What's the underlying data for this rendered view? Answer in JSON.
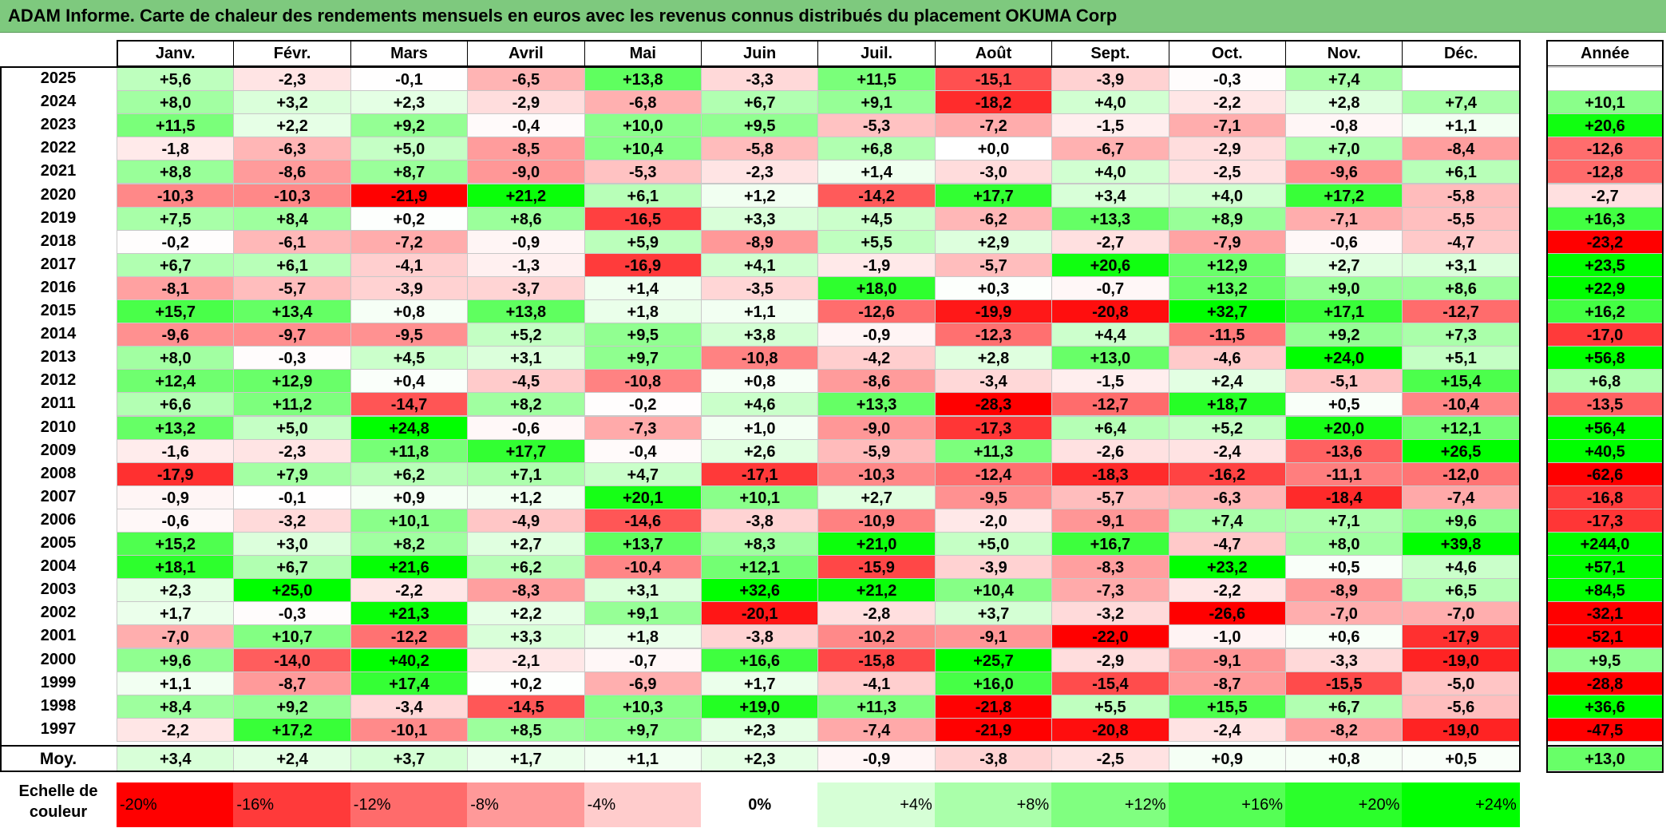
{
  "title": "ADAM Informe. Carte de chaleur des rendements mensuels en euros avec les revenus connus distribués du placement OKUMA Corp",
  "months": [
    "Janv.",
    "Févr.",
    "Mars",
    "Avril",
    "Mai",
    "Juin",
    "Juil.",
    "Août",
    "Sept.",
    "Oct.",
    "Nov.",
    "Déc."
  ],
  "annual_header": "Année",
  "avg_label": "Moy.",
  "rows": [
    {
      "year": "2025",
      "values": [
        "+5,6",
        "-2,3",
        "-0,1",
        "-6,5",
        "+13,8",
        "-3,3",
        "+11,5",
        "-15,1",
        "-3,9",
        "-0,3",
        "+7,4",
        ""
      ],
      "annual": ""
    },
    {
      "year": "2024",
      "values": [
        "+8,0",
        "+3,2",
        "+2,3",
        "-2,9",
        "-6,8",
        "+6,7",
        "+9,1",
        "-18,2",
        "+4,0",
        "-2,2",
        "+2,8",
        "+7,4"
      ],
      "annual": "+10,1"
    },
    {
      "year": "2023",
      "values": [
        "+11,5",
        "+2,2",
        "+9,2",
        "-0,4",
        "+10,0",
        "+9,5",
        "-5,3",
        "-7,2",
        "-1,5",
        "-7,1",
        "-0,8",
        "+1,1"
      ],
      "annual": "+20,6"
    },
    {
      "year": "2022",
      "values": [
        "-1,8",
        "-6,3",
        "+5,0",
        "-8,5",
        "+10,4",
        "-5,8",
        "+6,8",
        "+0,0",
        "-6,7",
        "-2,9",
        "+7,0",
        "-8,4"
      ],
      "annual": "-12,6"
    },
    {
      "year": "2021",
      "values": [
        "+8,8",
        "-8,6",
        "+8,7",
        "-9,0",
        "-5,3",
        "-2,3",
        "+1,4",
        "-3,0",
        "+4,0",
        "-2,5",
        "-9,6",
        "+6,1"
      ],
      "annual": "-12,8"
    },
    {
      "year": "2020",
      "values": [
        "-10,3",
        "-10,3",
        "-21,9",
        "+21,2",
        "+6,1",
        "+1,2",
        "-14,2",
        "+17,7",
        "+3,4",
        "+4,0",
        "+17,2",
        "-5,8"
      ],
      "annual": "-2,7"
    },
    {
      "year": "2019",
      "values": [
        "+7,5",
        "+8,4",
        "+0,2",
        "+8,6",
        "-16,5",
        "+3,3",
        "+4,5",
        "-6,2",
        "+13,3",
        "+8,9",
        "-7,1",
        "-5,5"
      ],
      "annual": "+16,3"
    },
    {
      "year": "2018",
      "values": [
        "-0,2",
        "-6,1",
        "-7,2",
        "-0,9",
        "+5,9",
        "-8,9",
        "+5,5",
        "+2,9",
        "-2,7",
        "-7,9",
        "-0,6",
        "-4,7"
      ],
      "annual": "-23,2"
    },
    {
      "year": "2017",
      "values": [
        "+6,7",
        "+6,1",
        "-4,1",
        "-1,3",
        "-16,9",
        "+4,1",
        "-1,9",
        "-5,7",
        "+20,6",
        "+12,9",
        "+2,7",
        "+3,1"
      ],
      "annual": "+23,5"
    },
    {
      "year": "2016",
      "values": [
        "-8,1",
        "-5,7",
        "-3,9",
        "-3,7",
        "+1,4",
        "-3,5",
        "+18,0",
        "+0,3",
        "-0,7",
        "+13,2",
        "+9,0",
        "+8,6"
      ],
      "annual": "+22,9"
    },
    {
      "year": "2015",
      "values": [
        "+15,7",
        "+13,4",
        "+0,8",
        "+13,8",
        "+1,8",
        "+1,1",
        "-12,6",
        "-19,9",
        "-20,8",
        "+32,7",
        "+17,1",
        "-12,7"
      ],
      "annual": "+16,2"
    },
    {
      "year": "2014",
      "values": [
        "-9,6",
        "-9,7",
        "-9,5",
        "+5,2",
        "+9,5",
        "+3,8",
        "-0,9",
        "-12,3",
        "+4,4",
        "-11,5",
        "+9,2",
        "+7,3"
      ],
      "annual": "-17,0"
    },
    {
      "year": "2013",
      "values": [
        "+8,0",
        "-0,3",
        "+4,5",
        "+3,1",
        "+9,7",
        "-10,8",
        "-4,2",
        "+2,8",
        "+13,0",
        "-4,6",
        "+24,0",
        "+5,1"
      ],
      "annual": "+56,8"
    },
    {
      "year": "2012",
      "values": [
        "+12,4",
        "+12,9",
        "+0,4",
        "-4,5",
        "-10,8",
        "+0,8",
        "-8,6",
        "-3,4",
        "-1,5",
        "+2,4",
        "-5,1",
        "+15,4"
      ],
      "annual": "+6,8"
    },
    {
      "year": "2011",
      "values": [
        "+6,6",
        "+11,2",
        "-14,7",
        "+8,2",
        "-0,2",
        "+4,6",
        "+13,3",
        "-28,3",
        "-12,7",
        "+18,7",
        "+0,5",
        "-10,4"
      ],
      "annual": "-13,5"
    },
    {
      "year": "2010",
      "values": [
        "+13,2",
        "+5,0",
        "+24,8",
        "-0,6",
        "-7,3",
        "+1,0",
        "-9,0",
        "-17,3",
        "+6,4",
        "+5,2",
        "+20,0",
        "+12,1"
      ],
      "annual": "+56,4"
    },
    {
      "year": "2009",
      "values": [
        "-1,6",
        "-2,3",
        "+11,8",
        "+17,7",
        "-0,4",
        "+2,6",
        "-5,9",
        "+11,3",
        "-2,6",
        "-2,4",
        "-13,6",
        "+26,5"
      ],
      "annual": "+40,5"
    },
    {
      "year": "2008",
      "values": [
        "-17,9",
        "+7,9",
        "+6,2",
        "+7,1",
        "+4,7",
        "-17,1",
        "-10,3",
        "-12,4",
        "-18,3",
        "-16,2",
        "-11,1",
        "-12,0"
      ],
      "annual": "-62,6"
    },
    {
      "year": "2007",
      "values": [
        "-0,9",
        "-0,1",
        "+0,9",
        "+1,2",
        "+20,1",
        "+10,1",
        "+2,7",
        "-9,5",
        "-5,7",
        "-6,3",
        "-18,4",
        "-7,4"
      ],
      "annual": "-16,8"
    },
    {
      "year": "2006",
      "values": [
        "-0,6",
        "-3,2",
        "+10,1",
        "-4,9",
        "-14,6",
        "-3,8",
        "-10,9",
        "-2,0",
        "-9,1",
        "+7,4",
        "+7,1",
        "+9,6"
      ],
      "annual": "-17,3"
    },
    {
      "year": "2005",
      "values": [
        "+15,2",
        "+3,0",
        "+8,2",
        "+2,7",
        "+13,7",
        "+8,3",
        "+21,0",
        "+5,0",
        "+16,7",
        "-4,7",
        "+8,0",
        "+39,8"
      ],
      "annual": "+244,0"
    },
    {
      "year": "2004",
      "values": [
        "+18,1",
        "+6,7",
        "+21,6",
        "+6,2",
        "-10,4",
        "+12,1",
        "-15,9",
        "-3,9",
        "-8,3",
        "+23,2",
        "+0,5",
        "+4,6"
      ],
      "annual": "+57,1"
    },
    {
      "year": "2003",
      "values": [
        "+2,3",
        "+25,0",
        "-2,2",
        "-8,3",
        "+3,1",
        "+32,6",
        "+21,2",
        "+10,4",
        "-7,3",
        "-2,2",
        "-8,9",
        "+6,5"
      ],
      "annual": "+84,5"
    },
    {
      "year": "2002",
      "values": [
        "+1,7",
        "-0,3",
        "+21,3",
        "+2,2",
        "+9,1",
        "-20,1",
        "-2,8",
        "+3,7",
        "-3,2",
        "-26,6",
        "-7,0",
        "-7,0"
      ],
      "annual": "-32,1"
    },
    {
      "year": "2001",
      "values": [
        "-7,0",
        "+10,7",
        "-12,2",
        "+3,3",
        "+1,8",
        "-3,8",
        "-10,2",
        "-9,1",
        "-22,0",
        "-1,0",
        "+0,6",
        "-17,9"
      ],
      "annual": "-52,1"
    },
    {
      "year": "2000",
      "values": [
        "+9,6",
        "-14,0",
        "+40,2",
        "-2,1",
        "-0,7",
        "+16,6",
        "-15,8",
        "+25,7",
        "-2,9",
        "-9,1",
        "-3,3",
        "-19,0"
      ],
      "annual": "+9,5"
    },
    {
      "year": "1999",
      "values": [
        "+1,1",
        "-8,7",
        "+17,4",
        "+0,2",
        "-6,9",
        "+1,7",
        "-4,1",
        "+16,0",
        "-15,4",
        "-8,7",
        "-15,5",
        "-5,0"
      ],
      "annual": "-28,8"
    },
    {
      "year": "1998",
      "values": [
        "+8,4",
        "+9,2",
        "-3,4",
        "-14,5",
        "+10,3",
        "+19,0",
        "+11,3",
        "-21,8",
        "+5,5",
        "+15,5",
        "+6,7",
        "-5,6"
      ],
      "annual": "+36,6"
    },
    {
      "year": "1997",
      "values": [
        "-2,2",
        "+17,2",
        "-10,1",
        "+8,5",
        "+9,7",
        "+2,3",
        "-7,4",
        "-21,9",
        "-20,8",
        "-2,4",
        "-8,2",
        "-19,0"
      ],
      "annual": "-47,5"
    }
  ],
  "average": {
    "values": [
      "+3,4",
      "+2,4",
      "+3,7",
      "+1,7",
      "+1,1",
      "+2,3",
      "-0,9",
      "-3,8",
      "-2,5",
      "+0,9",
      "+0,8",
      "+0,5"
    ],
    "annual": "+13,0"
  },
  "legend": {
    "label_line1": "Echelle de",
    "label_line2": "couleur",
    "steps": [
      {
        "label": "-20%",
        "color": "#ff0000"
      },
      {
        "label": "-16%",
        "color": "#ff3a3a"
      },
      {
        "label": "-12%",
        "color": "#ff6b6b"
      },
      {
        "label": "-8%",
        "color": "#ff9999"
      },
      {
        "label": "-4%",
        "color": "#ffcccc"
      },
      {
        "label": "0%",
        "color": "#ffffff"
      },
      {
        "label": "+4%",
        "color": "#d6ffd6"
      },
      {
        "label": "+8%",
        "color": "#aaffaa"
      },
      {
        "label": "+12%",
        "color": "#80ff80"
      },
      {
        "label": "+16%",
        "color": "#55ff55"
      },
      {
        "label": "+20%",
        "color": "#2bff2b"
      },
      {
        "label": "+24%",
        "color": "#00ff00"
      }
    ]
  },
  "colors": {
    "title_bar": "#7ec97e",
    "negative_max": "#ff0000",
    "neutral": "#ffffff",
    "positive_max": "#00ff00"
  }
}
